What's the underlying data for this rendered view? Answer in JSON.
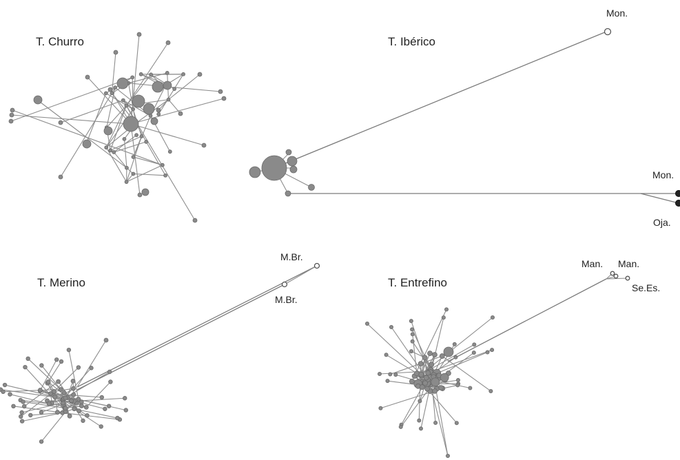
{
  "panels": {
    "churro": {
      "title": "T. Churro",
      "labels": []
    },
    "iberico": {
      "title": "T. Ibérico",
      "labels": [
        "Mon.",
        "Mon.",
        "Oja."
      ]
    },
    "merino": {
      "title": "T. Merino",
      "labels": [
        "M.Br.",
        "M.Br."
      ]
    },
    "entrefino": {
      "title": "T. Entrefino",
      "labels": [
        "Man.",
        "Man.",
        "Se.Es."
      ]
    }
  },
  "colors": {
    "node": "#8a8a8a",
    "edge": "#8c8c8c",
    "highlight": "#222222"
  }
}
